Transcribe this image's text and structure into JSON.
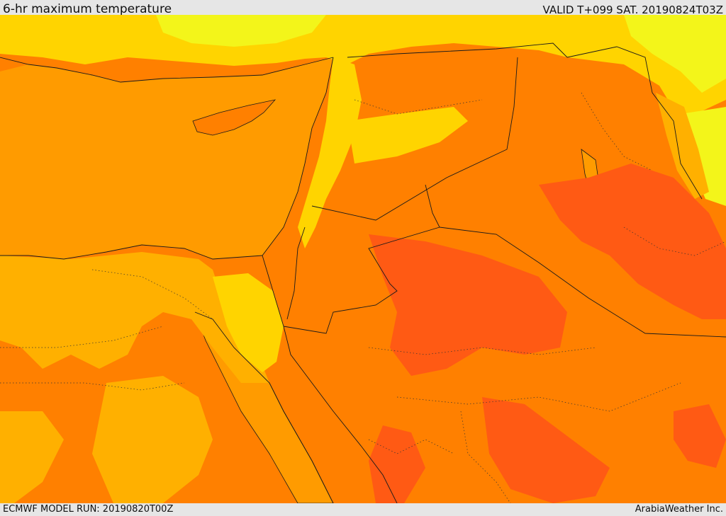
{
  "header": {
    "title": "6-hr maximum temperature",
    "valid": "VALID T+099 SAT. 20190824T03Z"
  },
  "footer": {
    "model_run": "ECMWF MODEL RUN: 20190820T00Z",
    "credit": "ArabiaWeather Inc."
  },
  "map": {
    "colors": {
      "coolest": "#f3f51a",
      "cool": "#ffd400",
      "mild": "#ffb000",
      "sea": "#ff9b00",
      "warm": "#ff8000",
      "hot": "#ff5a14"
    },
    "border_color": "#1a1a1a"
  }
}
